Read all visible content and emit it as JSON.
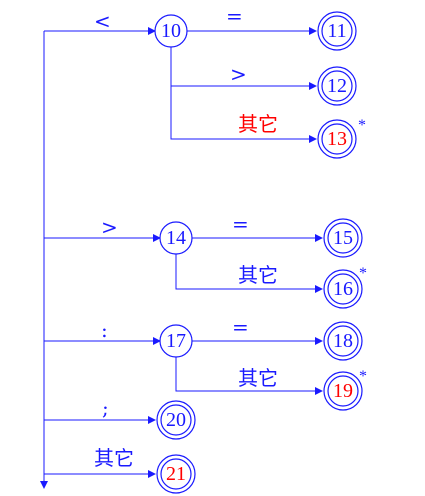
{
  "diagram": {
    "colors": {
      "edge": "#1a1aff",
      "node_text_normal": "#1a1aff",
      "node_text_final": "#ff0000"
    },
    "nodes": {
      "n10": {
        "label": "10",
        "final": false
      },
      "n11": {
        "label": "11",
        "final": false
      },
      "n12": {
        "label": "12",
        "final": false
      },
      "n13": {
        "label": "13",
        "final": true
      },
      "n14": {
        "label": "14",
        "final": false
      },
      "n15": {
        "label": "15",
        "final": false
      },
      "n16": {
        "label": "16",
        "final": true
      },
      "n17": {
        "label": "17",
        "final": false
      },
      "n18": {
        "label": "18",
        "final": false
      },
      "n19": {
        "label": "19",
        "final": true
      },
      "n20": {
        "label": "20",
        "final": false
      },
      "n21": {
        "label": "21",
        "final": true
      }
    },
    "edge_labels": {
      "to10": "<",
      "e10_11": "=",
      "e10_12": ">",
      "e10_13": "其它",
      "to14": ">",
      "e14_15": "=",
      "e14_16": "其它",
      "to17": ":",
      "e17_18": "=",
      "e17_19": "其它",
      "to20": ";",
      "to21": "其它"
    },
    "star_marks": {
      "s13": "*",
      "s16": "*",
      "s19": "*"
    }
  }
}
